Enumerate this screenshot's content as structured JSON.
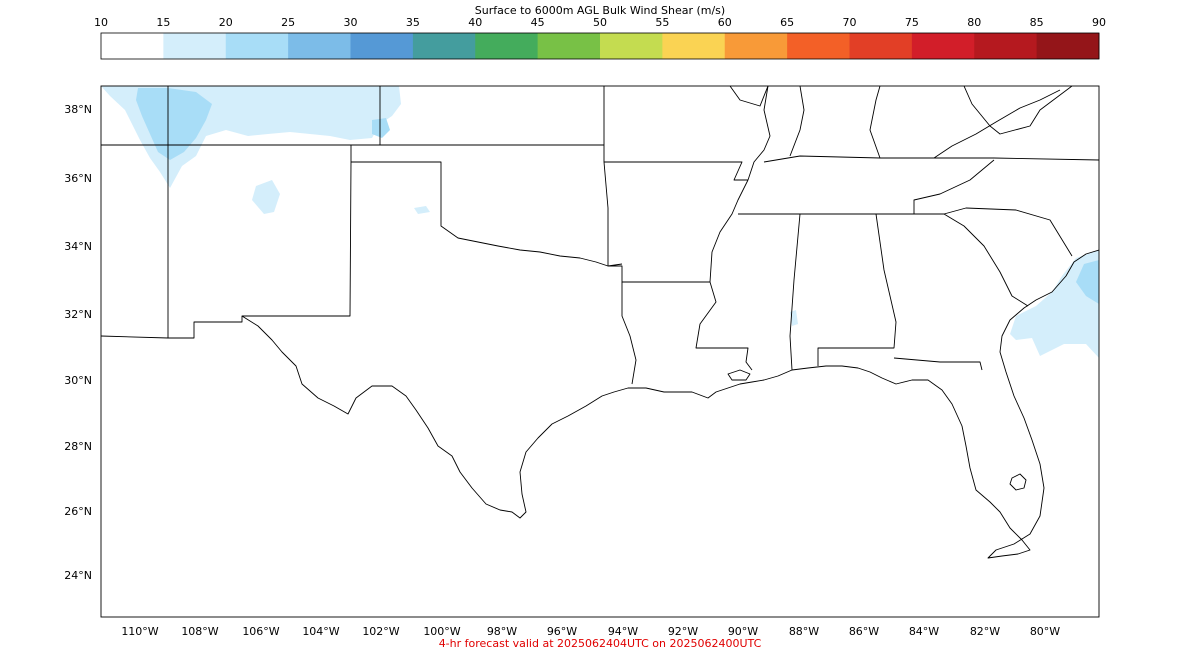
{
  "colorbar": {
    "title": "Surface to 6000m AGL Bulk Wind Shear (m/s)",
    "ticks": [
      "10",
      "15",
      "20",
      "25",
      "30",
      "35",
      "40",
      "45",
      "50",
      "55",
      "60",
      "65",
      "70",
      "75",
      "80",
      "85",
      "90"
    ],
    "colors": [
      "#ffffff",
      "#d4eefb",
      "#a8ddf7",
      "#7cbce8",
      "#5599d6",
      "#449d9e",
      "#44ac5c",
      "#78c146",
      "#c4dc50",
      "#fad353",
      "#f89a38",
      "#f36027",
      "#e23f26",
      "#d21e29",
      "#b5191f",
      "#941519"
    ]
  },
  "map": {
    "lat_labels": [
      "38°N",
      "36°N",
      "34°N",
      "32°N",
      "30°N",
      "28°N",
      "26°N",
      "24°N"
    ],
    "lon_labels": [
      "110°W",
      "108°W",
      "106°W",
      "104°W",
      "102°W",
      "100°W",
      "98°W",
      "96°W",
      "94°W",
      "92°W",
      "90°W",
      "88°W",
      "86°W",
      "84°W",
      "82°W",
      "80°W"
    ],
    "shading": {
      "light_color": "#d4eefb",
      "medium_color": "#a8ddf7"
    }
  },
  "footer": {
    "text": "4-hr forecast valid at 2025062404UTC on 2025062400UTC"
  }
}
